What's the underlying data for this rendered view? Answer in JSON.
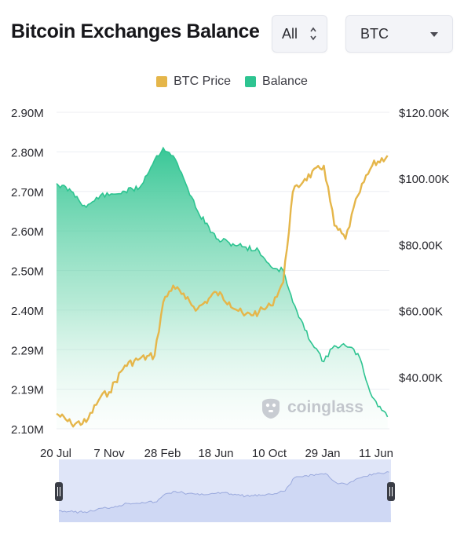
{
  "title": "Bitcoin Exchanges Balance",
  "range_select": {
    "value": "All"
  },
  "coin_select": {
    "value": "BTC"
  },
  "watermark": "coinglass",
  "colors": {
    "price": "#e5b64a",
    "balance": "#2ec491",
    "navigator": "#dfe5f8"
  },
  "chart_data": {
    "type": "line",
    "title": "Bitcoin Exchanges Balance",
    "legend": [
      "BTC Price",
      "Balance"
    ],
    "legend_position": "top-center",
    "grid": true,
    "x_tick_labels": [
      "20 Jul",
      "7 Nov",
      "28 Feb",
      "18 Jun",
      "10 Oct",
      "29 Jan",
      "11 Jun"
    ],
    "left_axis": {
      "tick_labels": [
        "2.90M",
        "2.80M",
        "2.70M",
        "2.60M",
        "2.50M",
        "2.40M",
        "2.29M",
        "2.19M",
        "2.10M"
      ],
      "range": [
        2.1,
        2.9
      ]
    },
    "right_axis": {
      "tick_labels": [
        "$120.00K",
        "$100.00K",
        "$80.00K",
        "$60.00K",
        "$40.00K"
      ],
      "range": [
        25,
        120
      ]
    },
    "series": [
      {
        "name": "Balance",
        "axis": "left",
        "chart": "area",
        "x": [
          "2023-07-20",
          "2023-08-20",
          "2023-09-20",
          "2023-10-20",
          "2023-11-07",
          "2023-12-10",
          "2024-01-10",
          "2024-02-10",
          "2024-02-28",
          "2024-03-20",
          "2024-04-15",
          "2024-05-10",
          "2024-06-18",
          "2024-07-15",
          "2024-08-15",
          "2024-09-15",
          "2024-10-10",
          "2024-11-05",
          "2024-11-25",
          "2024-12-20",
          "2025-01-29",
          "2025-02-20",
          "2025-03-15",
          "2025-04-10",
          "2025-05-10",
          "2025-06-11"
        ],
        "values": [
          2.72,
          2.7,
          2.66,
          2.69,
          2.69,
          2.7,
          2.71,
          2.78,
          2.81,
          2.79,
          2.72,
          2.65,
          2.58,
          2.57,
          2.56,
          2.55,
          2.51,
          2.5,
          2.42,
          2.35,
          2.27,
          2.31,
          2.31,
          2.29,
          2.18,
          2.13
        ]
      },
      {
        "name": "BTC Price",
        "axis": "right",
        "chart": "line",
        "x": [
          "2023-07-20",
          "2023-08-20",
          "2023-09-20",
          "2023-10-20",
          "2023-11-07",
          "2023-12-10",
          "2024-01-10",
          "2024-02-10",
          "2024-02-28",
          "2024-03-20",
          "2024-04-15",
          "2024-05-10",
          "2024-06-18",
          "2024-07-15",
          "2024-08-15",
          "2024-09-15",
          "2024-10-10",
          "2024-11-05",
          "2024-11-25",
          "2024-12-20",
          "2025-01-29",
          "2025-02-20",
          "2025-03-15",
          "2025-04-10",
          "2025-05-10",
          "2025-06-11"
        ],
        "values": [
          29.5,
          26.5,
          27,
          34.5,
          36,
          44,
          46,
          47,
          63,
          68,
          64,
          61,
          66,
          63,
          59,
          60,
          62,
          69,
          96,
          100,
          104,
          86,
          82,
          95,
          104,
          107
        ]
      }
    ],
    "navigator": {
      "visible": true,
      "range_handles": "full"
    }
  }
}
